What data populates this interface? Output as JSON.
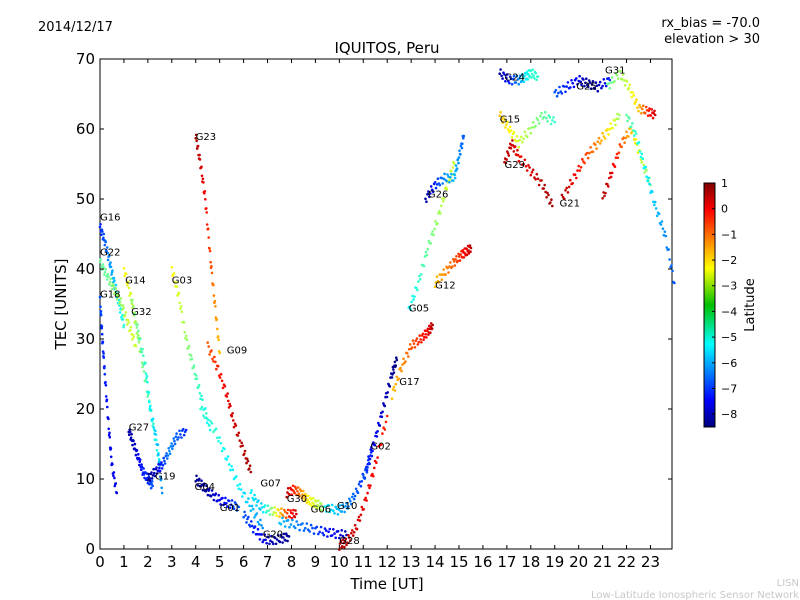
{
  "header": {
    "date": "2014/12/17",
    "bias": "rx_bias = -70.0",
    "elevation": "elevation > 30"
  },
  "footer": {
    "org_short": "LISN",
    "org_long": "Low-Latitude Ionospheric Sensor Network"
  },
  "colorbar": {
    "label": "Latitude",
    "min": -8.5,
    "max": 1,
    "ticks": [
      "1",
      "0",
      "−1",
      "−2",
      "−3",
      "−4",
      "−5",
      "−6",
      "−7",
      "−8"
    ],
    "tick_values": [
      1,
      0,
      -1,
      -2,
      -3,
      -4,
      -5,
      -6,
      -7,
      -8
    ]
  },
  "chart_data": {
    "type": "scatter",
    "title": "IQUITOS, Peru",
    "xlabel": "Time [UT]",
    "ylabel": "TEC [UNITS]",
    "xlim": [
      0,
      24
    ],
    "ylim": [
      0,
      70
    ],
    "xticks": [
      0,
      1,
      2,
      3,
      4,
      5,
      6,
      7,
      8,
      9,
      10,
      11,
      12,
      13,
      14,
      15,
      16,
      17,
      18,
      19,
      20,
      21,
      22,
      23
    ],
    "yticks": [
      0,
      10,
      20,
      30,
      40,
      50,
      60,
      70
    ],
    "grid": false,
    "series": [
      {
        "name": "G16",
        "label_at": [
          0.0,
          47.5
        ],
        "points": [
          [
            0.0,
            46
          ],
          [
            0.2,
            44
          ],
          [
            0.4,
            41
          ],
          [
            0.6,
            38
          ],
          [
            0.8,
            35
          ],
          [
            1.0,
            32
          ]
        ],
        "lat": [
          -7,
          -6.5,
          -6,
          -5.5,
          -5,
          -4.5
        ]
      },
      {
        "name": "G22",
        "label_at": [
          0.0,
          42.5
        ],
        "points": [
          [
            0.0,
            41
          ],
          [
            0.3,
            39
          ],
          [
            0.6,
            37
          ],
          [
            0.9,
            35
          ],
          [
            1.2,
            32
          ],
          [
            1.5,
            29
          ]
        ],
        "lat": [
          -4,
          -4,
          -3.5,
          -3.5,
          -3,
          -3
        ]
      },
      {
        "name": "G18",
        "label_at": [
          0.0,
          36.5
        ],
        "points": [
          [
            0.0,
            36
          ],
          [
            0.1,
            30
          ],
          [
            0.2,
            25
          ],
          [
            0.35,
            18
          ],
          [
            0.5,
            12
          ],
          [
            0.7,
            8
          ]
        ],
        "lat": [
          -6.5,
          -7,
          -7,
          -7.5,
          -7.5,
          -7.5
        ]
      },
      {
        "name": "G14",
        "label_at": [
          1.05,
          38.5
        ],
        "points": [
          [
            1.0,
            40
          ],
          [
            1.3,
            36
          ],
          [
            1.6,
            30
          ],
          [
            1.9,
            24
          ],
          [
            2.2,
            18
          ],
          [
            2.5,
            12
          ]
        ],
        "lat": [
          -2.5,
          -3,
          -3.5,
          -4,
          -4.5,
          -5
        ]
      },
      {
        "name": "G32",
        "label_at": [
          1.3,
          34.0
        ],
        "points": [
          [
            1.3,
            36
          ],
          [
            1.6,
            31
          ],
          [
            1.9,
            26
          ],
          [
            2.1,
            20
          ],
          [
            2.4,
            15
          ],
          [
            2.6,
            8
          ]
        ],
        "lat": [
          -3.5,
          -4,
          -4.5,
          -5,
          -5.5,
          -6
        ]
      },
      {
        "name": "G27",
        "label_at": [
          1.2,
          17.5
        ],
        "points": [
          [
            1.2,
            17
          ],
          [
            1.4,
            15
          ],
          [
            1.6,
            13
          ],
          [
            1.8,
            11
          ],
          [
            2.0,
            10
          ],
          [
            2.2,
            9
          ]
        ],
        "lat": [
          -8.2,
          -8,
          -7.5,
          -7,
          -7,
          -6.5
        ]
      },
      {
        "name": "G19",
        "label_at": [
          2.3,
          10.5
        ],
        "points": [
          [
            2.0,
            10
          ],
          [
            2.3,
            11
          ],
          [
            2.6,
            12
          ],
          [
            2.9,
            14
          ],
          [
            3.2,
            16
          ],
          [
            3.6,
            17
          ]
        ],
        "lat": [
          -8.3,
          -8,
          -7,
          -6,
          -6.5,
          -7
        ]
      },
      {
        "name": "G03",
        "label_at": [
          3.0,
          38.5
        ],
        "points": [
          [
            3.0,
            40
          ],
          [
            3.3,
            36
          ],
          [
            3.6,
            30
          ],
          [
            3.9,
            26
          ],
          [
            4.2,
            22
          ],
          [
            4.6,
            17
          ]
        ],
        "lat": [
          -2.5,
          -3,
          -3.5,
          -4,
          -4.5,
          -5
        ]
      },
      {
        "name": "G23",
        "label_at": [
          4.0,
          59.0
        ],
        "points": [
          [
            4.0,
            59
          ],
          [
            4.2,
            55
          ],
          [
            4.4,
            50
          ],
          [
            4.6,
            42
          ],
          [
            4.8,
            35
          ],
          [
            5.0,
            28
          ]
        ],
        "lat": [
          0.6,
          0.3,
          -0.2,
          -0.8,
          -1.5,
          -2
        ]
      },
      {
        "name": "G09",
        "label_at": [
          5.3,
          28.5
        ],
        "points": [
          [
            4.5,
            29
          ],
          [
            4.9,
            26
          ],
          [
            5.3,
            22
          ],
          [
            5.6,
            18
          ],
          [
            6.0,
            14
          ],
          [
            6.3,
            11
          ]
        ],
        "lat": [
          -1,
          -0.5,
          0,
          0.3,
          0.5,
          0.7
        ]
      },
      {
        "name": "G04",
        "label_at": [
          3.95,
          9.0
        ],
        "points": [
          [
            4.0,
            10
          ],
          [
            4.3,
            9
          ],
          [
            4.6,
            8
          ],
          [
            5.0,
            7
          ],
          [
            5.4,
            6.5
          ],
          [
            5.8,
            6
          ]
        ],
        "lat": [
          -8.3,
          -8.2,
          -8,
          -7.5,
          -7,
          -6.5
        ]
      },
      {
        "name": "G01",
        "label_at": [
          5.0,
          6.0
        ],
        "points": [
          [
            4.2,
            20
          ],
          [
            4.8,
            17
          ],
          [
            5.3,
            13
          ],
          [
            5.8,
            9
          ],
          [
            6.3,
            6
          ],
          [
            6.8,
            3
          ]
        ],
        "lat": [
          -4.5,
          -4.5,
          -5,
          -5,
          -5.5,
          -6
        ]
      },
      {
        "name": "G07",
        "label_at": [
          6.7,
          9.5
        ],
        "points": [
          [
            6.3,
            8
          ],
          [
            6.7,
            6
          ],
          [
            7.1,
            5.5
          ],
          [
            7.5,
            5.2
          ],
          [
            7.9,
            5
          ],
          [
            8.2,
            5
          ]
        ],
        "lat": [
          -5,
          -5.5,
          -4,
          -2,
          -0.5,
          0.3
        ]
      },
      {
        "name": "G20",
        "label_at": [
          6.8,
          2.2
        ],
        "points": [
          [
            6.0,
            5
          ],
          [
            6.4,
            3
          ],
          [
            6.8,
            1.5
          ],
          [
            7.2,
            1.2
          ],
          [
            7.6,
            1.5
          ],
          [
            7.9,
            1.8
          ]
        ],
        "lat": [
          -6.5,
          -7,
          -7.5,
          -8,
          -8.2,
          -8.3
        ]
      },
      {
        "name": "G30",
        "label_at": [
          7.8,
          7.3
        ],
        "points": [
          [
            7.8,
            8
          ],
          [
            8.1,
            8.5
          ],
          [
            8.4,
            8
          ],
          [
            8.7,
            7
          ],
          [
            9.0,
            6.5
          ],
          [
            9.3,
            6
          ]
        ],
        "lat": [
          0.5,
          -0.5,
          -1.5,
          -2.5,
          -3,
          -3.5
        ]
      },
      {
        "name": "G06",
        "label_at": [
          8.8,
          5.8
        ],
        "points": [
          [
            7.5,
            4
          ],
          [
            8.1,
            3.5
          ],
          [
            8.7,
            3
          ],
          [
            9.3,
            2.5
          ],
          [
            9.8,
            2.2
          ],
          [
            10.3,
            2
          ]
        ],
        "lat": [
          -5.5,
          -6,
          -6.5,
          -7,
          -7.5,
          -8
        ]
      },
      {
        "name": "G10",
        "label_at": [
          9.9,
          6.3
        ],
        "points": [
          [
            9.4,
            6
          ],
          [
            9.9,
            5.5
          ],
          [
            10.3,
            6
          ],
          [
            10.7,
            8
          ],
          [
            11.1,
            11
          ],
          [
            11.4,
            15
          ]
        ],
        "lat": [
          -5,
          -5.5,
          -6,
          -6.5,
          -7,
          -7.5
        ]
      },
      {
        "name": "G28",
        "label_at": [
          10.0,
          1.3
        ],
        "points": [
          [
            10.0,
            0.5
          ],
          [
            10.3,
            1
          ],
          [
            10.7,
            3
          ],
          [
            11.1,
            7
          ],
          [
            11.5,
            12
          ],
          [
            12.0,
            19
          ]
        ],
        "lat": [
          0.6,
          0.4,
          0.2,
          0,
          -0.2,
          -0.5
        ]
      },
      {
        "name": "G02",
        "label_at": [
          11.3,
          14.8
        ],
        "points": [
          [
            11.0,
            10
          ],
          [
            11.3,
            13
          ],
          [
            11.6,
            17
          ],
          [
            11.9,
            21
          ],
          [
            12.2,
            25
          ],
          [
            12.4,
            27
          ]
        ],
        "lat": [
          -6.5,
          -7,
          -7.5,
          -8,
          -8.3,
          -8.5
        ]
      },
      {
        "name": "G17",
        "label_at": [
          12.5,
          24.0
        ],
        "points": [
          [
            12.2,
            22
          ],
          [
            12.6,
            26
          ],
          [
            13.0,
            29
          ],
          [
            13.4,
            30
          ],
          [
            13.7,
            31
          ],
          [
            13.9,
            32
          ]
        ],
        "lat": [
          -2,
          -1.5,
          -1,
          -0.5,
          0,
          0.5
        ]
      },
      {
        "name": "G05",
        "label_at": [
          12.9,
          34.5
        ],
        "points": [
          [
            12.9,
            34
          ],
          [
            13.3,
            38
          ],
          [
            13.7,
            43
          ],
          [
            14.1,
            47
          ],
          [
            14.5,
            52
          ],
          [
            14.8,
            55
          ]
        ],
        "lat": [
          -5,
          -4.5,
          -4,
          -3.5,
          -3,
          -3
        ]
      },
      {
        "name": "G26",
        "label_at": [
          13.7,
          50.8
        ],
        "points": [
          [
            13.6,
            50
          ],
          [
            14.0,
            52
          ],
          [
            14.4,
            53
          ],
          [
            14.8,
            53
          ],
          [
            15.0,
            56
          ],
          [
            15.2,
            59
          ]
        ],
        "lat": [
          -8.2,
          -7,
          -6,
          -5.5,
          -6,
          -6.5
        ]
      },
      {
        "name": "G12",
        "label_at": [
          14.0,
          37.8
        ],
        "points": [
          [
            14.0,
            38
          ],
          [
            14.4,
            39.5
          ],
          [
            14.8,
            41
          ],
          [
            15.1,
            42
          ],
          [
            15.3,
            42.5
          ],
          [
            15.5,
            43
          ]
        ],
        "lat": [
          -2,
          -1.5,
          -1,
          -0.5,
          0,
          0.4
        ]
      },
      {
        "name": "G24",
        "label_at": [
          16.9,
          67.5
        ],
        "points": [
          [
            16.7,
            68
          ],
          [
            17.1,
            67
          ],
          [
            17.5,
            67
          ],
          [
            17.8,
            67.5
          ],
          [
            18.0,
            68
          ],
          [
            18.3,
            67.5
          ]
        ],
        "lat": [
          -8.3,
          -7,
          -6,
          -5,
          -4.5,
          -4.5
        ]
      },
      {
        "name": "G15",
        "label_at": [
          16.7,
          61.5
        ],
        "points": [
          [
            16.7,
            62
          ],
          [
            17.1,
            60
          ],
          [
            17.5,
            58
          ],
          [
            18.0,
            60
          ],
          [
            18.5,
            62
          ],
          [
            19.0,
            61
          ]
        ],
        "lat": [
          -2,
          -2.5,
          -3,
          -3.5,
          -4,
          -4.5
        ]
      },
      {
        "name": "G29",
        "label_at": [
          16.9,
          55.0
        ],
        "points": [
          [
            16.9,
            55
          ],
          [
            17.2,
            58
          ],
          [
            17.5,
            56
          ],
          [
            18.0,
            54
          ],
          [
            18.5,
            52
          ],
          [
            18.9,
            49
          ]
        ],
        "lat": [
          0.5,
          0.3,
          0,
          0.2,
          0.5,
          0.7
        ]
      },
      {
        "name": "G25",
        "label_at": [
          19.9,
          66.2
        ],
        "points": [
          [
            19.0,
            65
          ],
          [
            19.5,
            66
          ],
          [
            20.0,
            67
          ],
          [
            20.4,
            66.5
          ],
          [
            20.8,
            66
          ],
          [
            21.3,
            67
          ]
        ],
        "lat": [
          -6.5,
          -7,
          -7.5,
          -8.3,
          -8,
          -7
        ]
      },
      {
        "name": "G21",
        "label_at": [
          19.2,
          49.5
        ],
        "points": [
          [
            19.3,
            50
          ],
          [
            19.8,
            53
          ],
          [
            20.3,
            56
          ],
          [
            20.8,
            58
          ],
          [
            21.3,
            60
          ],
          [
            21.7,
            62
          ]
        ],
        "lat": [
          0.5,
          0,
          -0.8,
          -1.5,
          -2.5,
          -3.5
        ]
      },
      {
        "name": "G31",
        "label_at": [
          21.1,
          68.5
        ],
        "points": [
          [
            21.2,
            66
          ],
          [
            21.7,
            68
          ],
          [
            22.1,
            66
          ],
          [
            22.5,
            63
          ],
          [
            22.9,
            62.5
          ],
          [
            23.2,
            62
          ]
        ],
        "lat": [
          -4,
          -3.5,
          -3,
          -2,
          -0.5,
          0.3
        ]
      },
      {
        "name": "",
        "label_at": null,
        "points": [
          [
            21.0,
            50
          ],
          [
            21.4,
            54
          ],
          [
            21.8,
            58
          ],
          [
            22.2,
            60
          ],
          [
            22.6,
            56
          ],
          [
            23.0,
            52
          ]
        ],
        "lat": [
          0.6,
          0,
          -1,
          -2,
          -3,
          -4
        ]
      },
      {
        "name": "",
        "label_at": null,
        "points": [
          [
            22.0,
            62
          ],
          [
            22.4,
            59
          ],
          [
            22.8,
            54
          ],
          [
            23.2,
            49
          ],
          [
            23.6,
            45
          ],
          [
            24.0,
            38
          ]
        ],
        "lat": [
          -4,
          -4.5,
          -5,
          -5.5,
          -6,
          -6.5
        ]
      }
    ]
  }
}
